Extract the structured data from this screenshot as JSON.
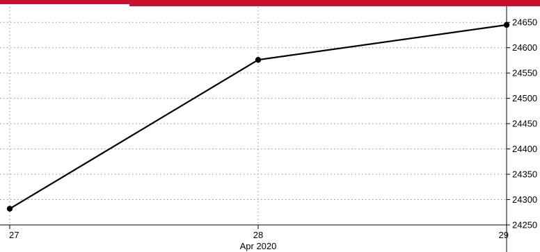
{
  "header_bar": {
    "color": "#c8102e",
    "accent": "#ffffff"
  },
  "chart_data": {
    "type": "line",
    "x": [
      27,
      28,
      29
    ],
    "x_tick_labels": [
      "27",
      "28",
      "29"
    ],
    "xlabel": "Apr 2020",
    "series": [
      {
        "values": [
          24282,
          24576,
          24645
        ],
        "color": "#000000"
      }
    ],
    "yticks": [
      24250,
      24300,
      24350,
      24400,
      24450,
      24500,
      24550,
      24600,
      24650
    ],
    "y_tick_labels": [
      "24250",
      "24300",
      "24350",
      "24400",
      "24450",
      "24500",
      "24550",
      "24600",
      "24650"
    ],
    "ylim": [
      24250,
      24675
    ],
    "y_axis_side": "right",
    "grid": true,
    "grid_color": "#8c8c8c"
  }
}
